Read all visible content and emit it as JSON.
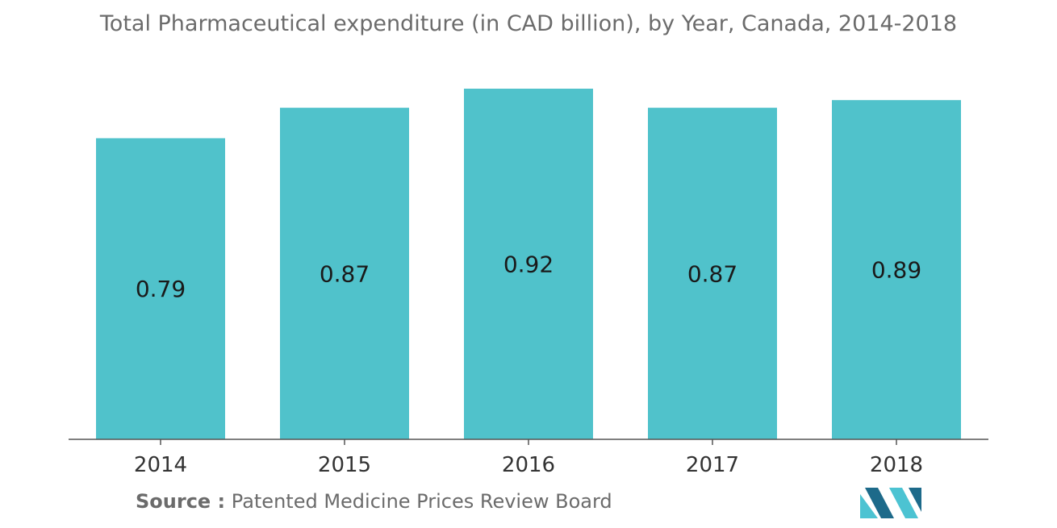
{
  "colors": {
    "bar": "#50c2cb",
    "title": "#6b6b6b",
    "axis": "#555555",
    "label": "#1a1a1a",
    "logo_dark": "#1d6a8a",
    "logo_light": "#4cc3d2"
  },
  "chart_data": {
    "type": "bar",
    "title": "Total Pharmaceutical expenditure (in CAD billion), by Year, Canada, 2014-2018",
    "xlabel": "",
    "ylabel": "",
    "categories": [
      "2014",
      "2015",
      "2016",
      "2017",
      "2018"
    ],
    "values": [
      0.79,
      0.87,
      0.92,
      0.87,
      0.89
    ],
    "value_labels": [
      "0.79",
      "0.87",
      "0.92",
      "0.87",
      "0.89"
    ],
    "ylim": [
      0,
      0.92
    ],
    "grid": false,
    "legend": "none"
  },
  "source": {
    "label": "Source :",
    "text": "Patented Medicine Prices Review Board"
  },
  "logo": {
    "icon": "mordor-logo-icon"
  }
}
